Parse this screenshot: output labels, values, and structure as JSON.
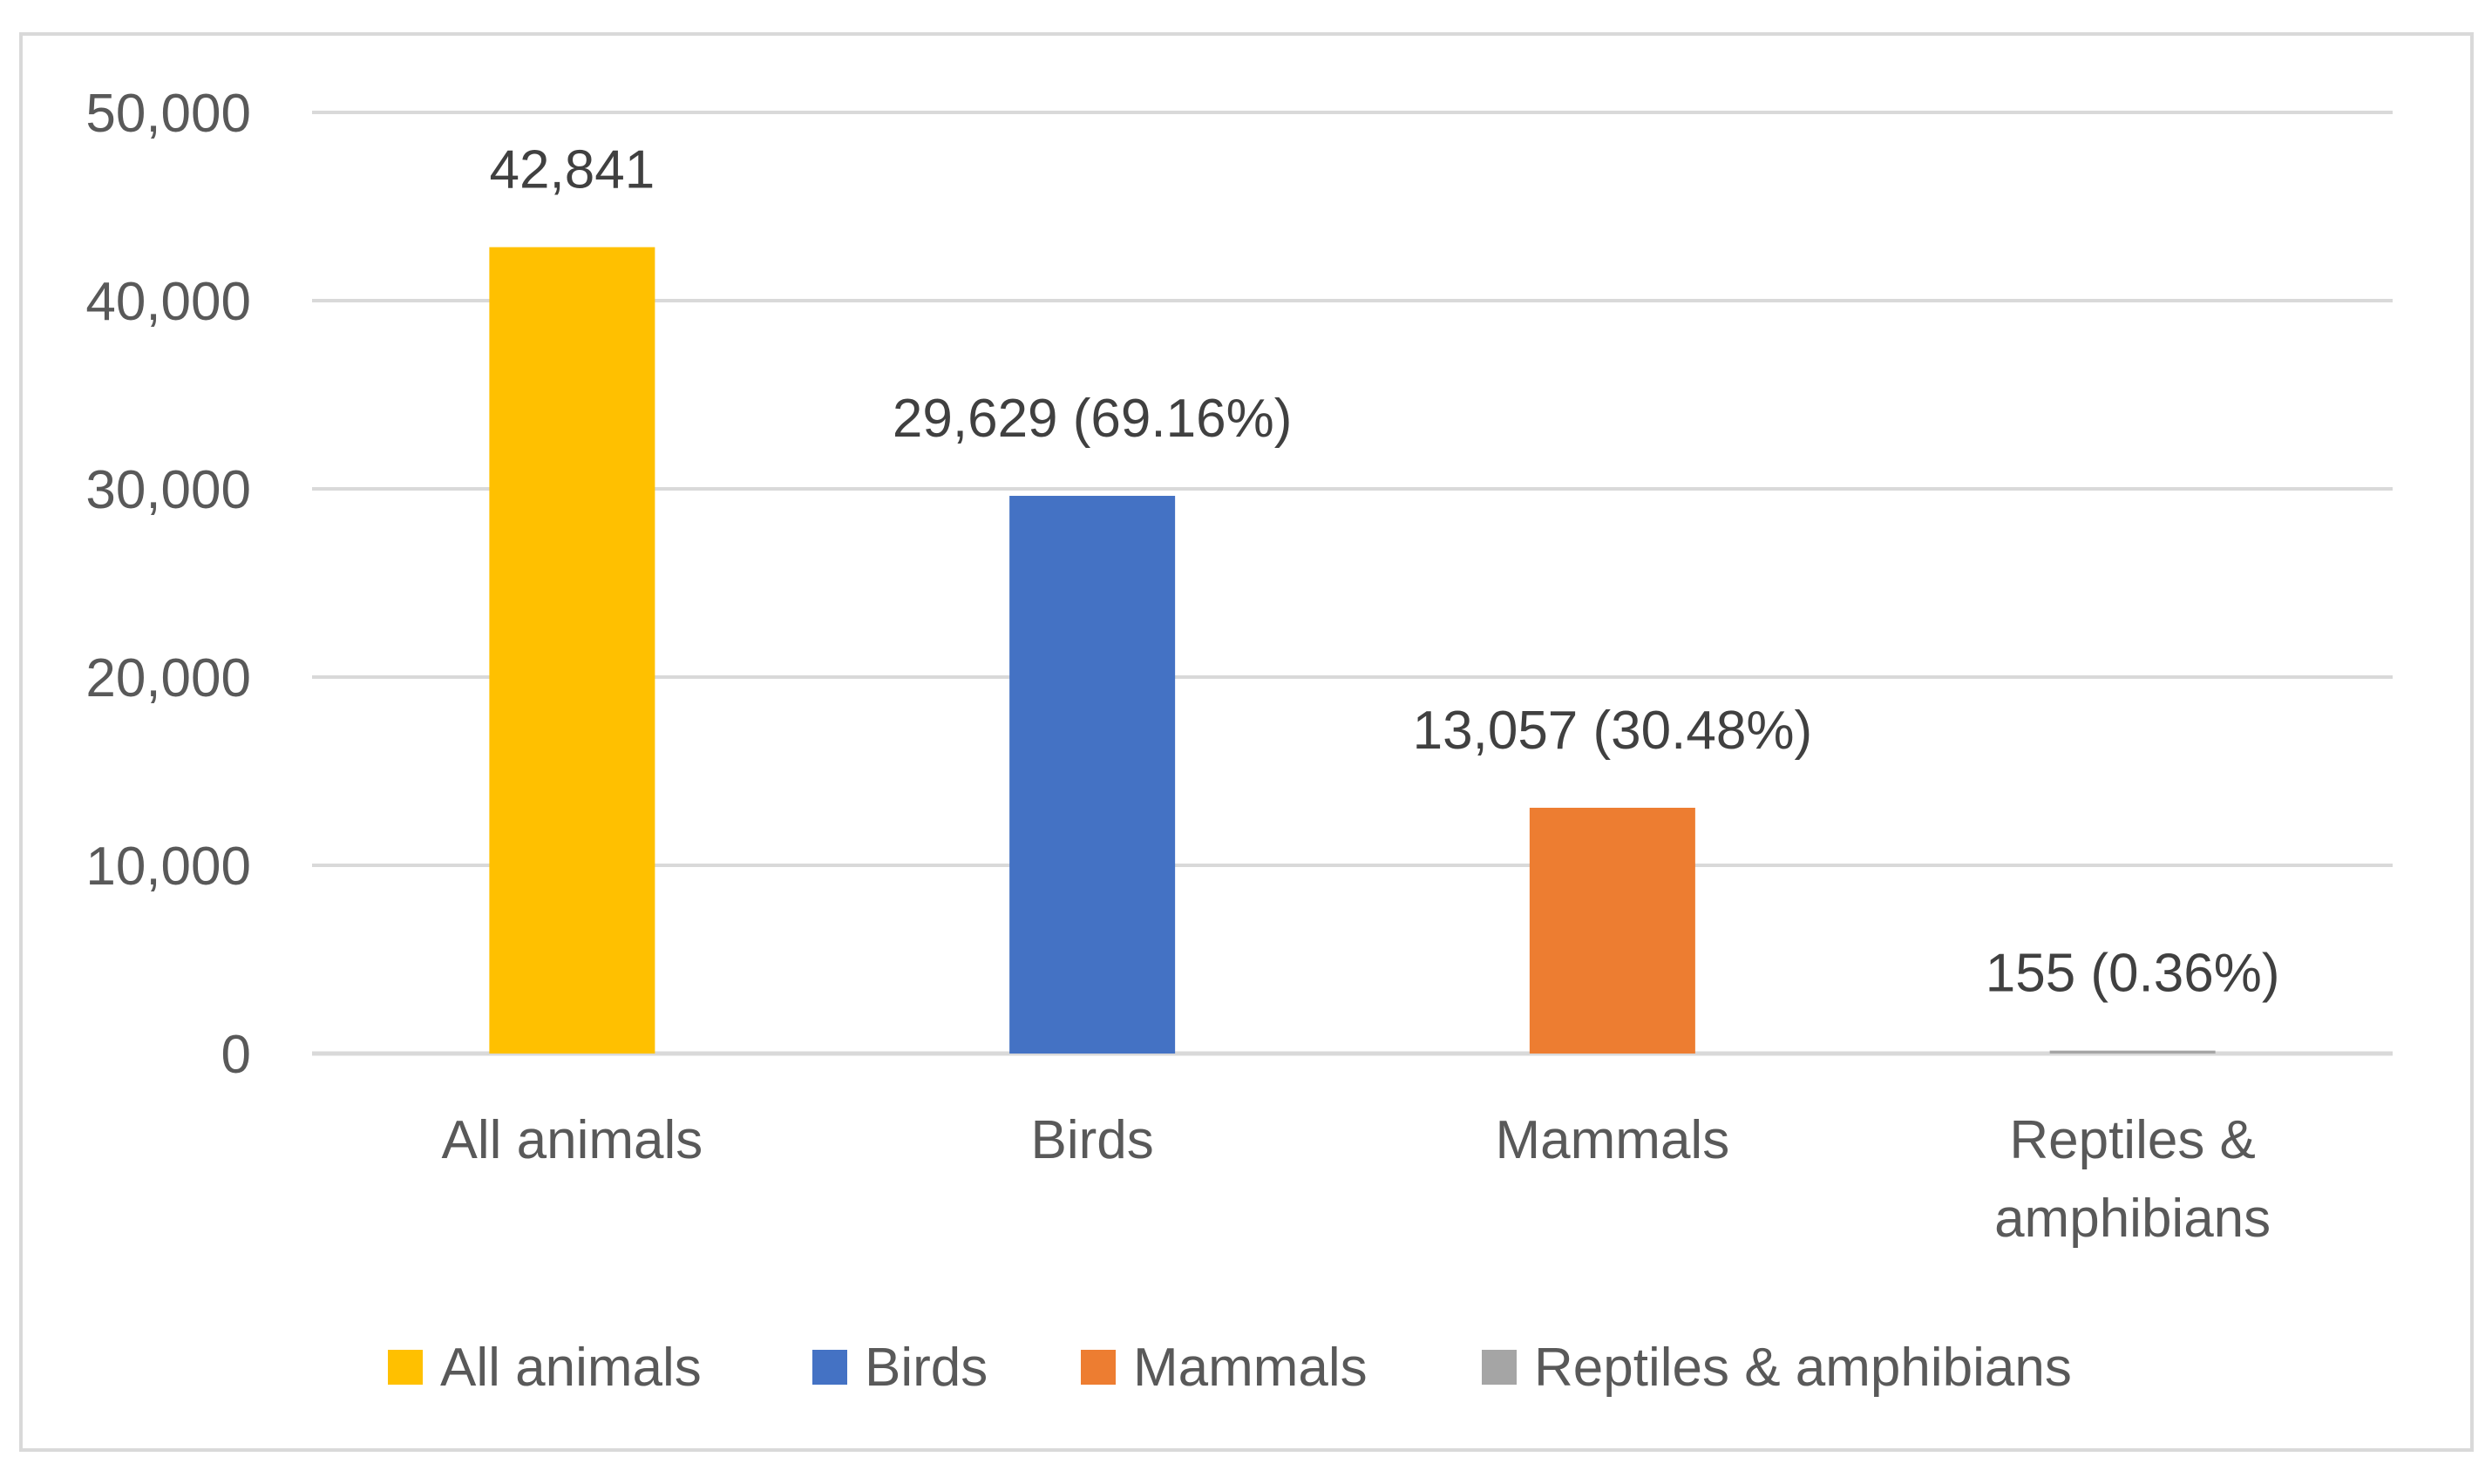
{
  "chart_data": {
    "type": "bar",
    "title": "",
    "xlabel": "",
    "ylabel": "",
    "ylim": [
      0,
      50000
    ],
    "yticks": [
      0,
      10000,
      20000,
      30000,
      40000,
      50000
    ],
    "ytick_labels": [
      "0",
      "10,000",
      "20,000",
      "30,000",
      "40,000",
      "50,000"
    ],
    "grid": true,
    "legend_position": "bottom",
    "categories": [
      "All animals",
      "Birds",
      "Mammals",
      "Reptiles & amphibians"
    ],
    "category_label_lines": [
      [
        "All animals"
      ],
      [
        "Birds"
      ],
      [
        "Mammals"
      ],
      [
        "Reptiles &",
        "amphibians"
      ]
    ],
    "values": [
      42841,
      29629,
      13057,
      155
    ],
    "data_labels": [
      "42,841",
      "29,629 (69.16%)",
      "13,057 (30.48%)",
      "155 (0.36%)"
    ],
    "colors": [
      "#ffc000",
      "#4472c4",
      "#ed7d31",
      "#a5a5a5"
    ],
    "legend": [
      "All animals",
      "Birds",
      "Mammals",
      "Reptiles & amphibians"
    ]
  }
}
